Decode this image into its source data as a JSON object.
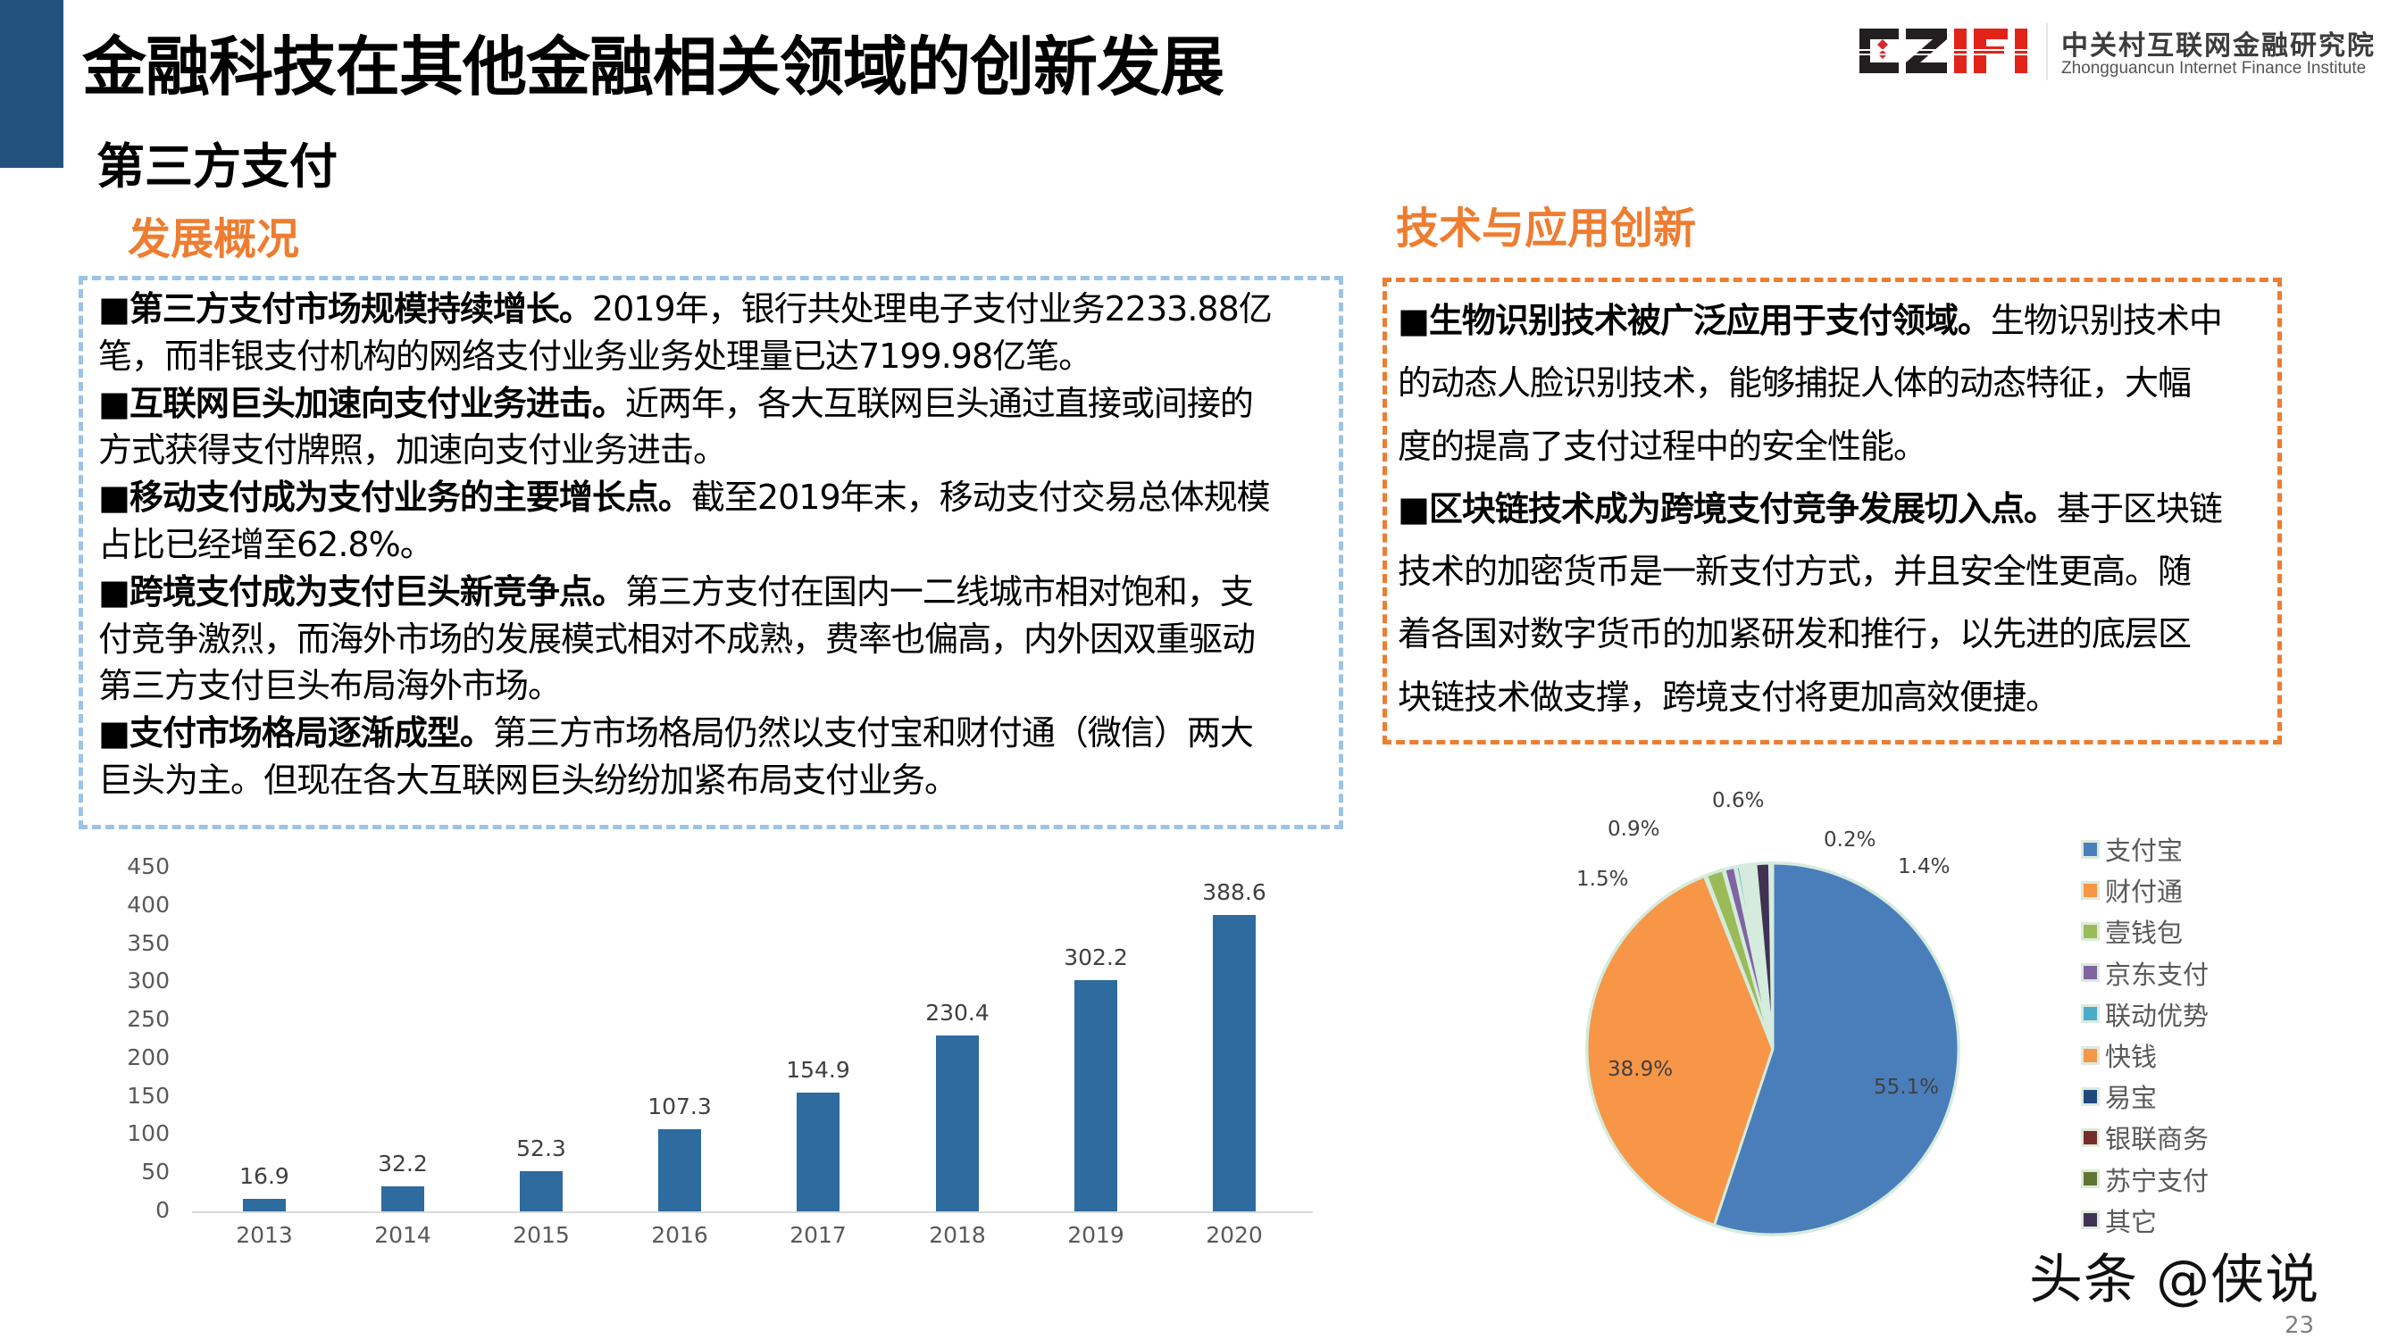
{
  "header": {
    "title": "金融科技在其他金融相关领域的创新发展",
    "section": "第三方支付",
    "accent_color": "#24527f"
  },
  "logo": {
    "mark": "CZIFI",
    "name_cn": "中关村互联网金融研究院",
    "name_en": "Zhongguancun Internet Finance Institute"
  },
  "overview": {
    "heading": "发展概况",
    "border_color": "#9dc3e6",
    "lines": [
      {
        "bullet": "■",
        "lead": "第三方支付市场规模持续增长。",
        "text": "2019年，银行共处理电子支付业务2233.88亿"
      },
      {
        "bullet": "",
        "lead": "",
        "text": "笔，而非银支付机构的网络支付业务业务处理量已达7199.98亿笔。"
      },
      {
        "bullet": "■",
        "lead": "互联网巨头加速向支付业务进击。",
        "text": "近两年，各大互联网巨头通过直接或间接的"
      },
      {
        "bullet": "",
        "lead": "",
        "text": "方式获得支付牌照，加速向支付业务进击。"
      },
      {
        "bullet": "■",
        "lead": "移动支付成为支付业务的主要增长点。",
        "text": "截至2019年末，移动支付交易总体规模"
      },
      {
        "bullet": "",
        "lead": "",
        "text": "占比已经增至62.8%。"
      },
      {
        "bullet": "■",
        "lead": "跨境支付成为支付巨头新竞争点。",
        "text": "第三方支付在国内一二线城市相对饱和，支"
      },
      {
        "bullet": "",
        "lead": "",
        "text": "付竞争激烈，而海外市场的发展模式相对不成熟，费率也偏高，内外因双重驱动"
      },
      {
        "bullet": "",
        "lead": "",
        "text": "第三方支付巨头布局海外市场。"
      },
      {
        "bullet": "■",
        "lead": "支付市场格局逐渐成型。",
        "text": "第三方市场格局仍然以支付宝和财付通（微信）两大"
      },
      {
        "bullet": "",
        "lead": "",
        "text": "巨头为主。但现在各大互联网巨头纷纷加紧布局支付业务。"
      }
    ]
  },
  "tech": {
    "heading": "技术与应用创新",
    "border_color": "#ed7d31",
    "lines": [
      {
        "bullet": "■",
        "lead": "生物识别技术被广泛应用于支付领域。",
        "text": "生物识别技术中"
      },
      {
        "bullet": "",
        "lead": "",
        "text": "的动态人脸识别技术，能够捕捉人体的动态特征，大幅"
      },
      {
        "bullet": "",
        "lead": "",
        "text": "度的提高了支付过程中的安全性能。"
      },
      {
        "bullet": "■",
        "lead": "区块链技术成为跨境支付竞争发展切入点。",
        "text": "基于区块链"
      },
      {
        "bullet": "",
        "lead": "",
        "text": "技术的加密货币是一新支付方式，并且安全性更高。随"
      },
      {
        "bullet": "",
        "lead": "",
        "text": "着各国对数字货币的加紧研发和推行，以先进的底层区"
      },
      {
        "bullet": "",
        "lead": "",
        "text": "块链技术做支撑，跨境支付将更加高效便捷。"
      }
    ]
  },
  "chart_data": [
    {
      "type": "bar",
      "title": "",
      "xlabel": "",
      "ylabel": "",
      "categories": [
        "2013",
        "2014",
        "2015",
        "2016",
        "2017",
        "2018",
        "2019",
        "2020"
      ],
      "values": [
        16.9,
        32.2,
        52.3,
        107.3,
        154.9,
        230.4,
        302.2,
        388.6
      ],
      "value_labels": [
        "16.9",
        "32.2",
        "52.3",
        "107.3",
        "154.9",
        "230.4",
        "302.2",
        "388.6"
      ],
      "ylim": [
        0,
        450
      ],
      "yticks": [
        "0",
        "50",
        "100",
        "150",
        "200",
        "250",
        "300",
        "350",
        "400",
        "450"
      ],
      "grid": false,
      "legend": null,
      "color": "#2e6b9e"
    },
    {
      "type": "pie",
      "title": "",
      "legend_position": "right",
      "slices": [
        {
          "label": "支付宝",
          "value": 55.1,
          "display": "55.1%",
          "color": "#4a7ebb"
        },
        {
          "label": "财付通",
          "value": 38.9,
          "display": "38.9%",
          "color": "#f79646"
        },
        {
          "label": "壹钱包",
          "value": 1.5,
          "display": "1.5%",
          "color": "#9bbb59"
        },
        {
          "label": "京东支付",
          "value": 0.9,
          "display": "0.9%",
          "color": "#8064a2"
        },
        {
          "label": "联动优势",
          "value": 0.6,
          "display": "0.6%",
          "color": "#4bacc6"
        },
        {
          "label": "快钱",
          "value": 0.2,
          "display": "0.2%",
          "color": "#f79646"
        },
        {
          "label": "易宝",
          "value": null,
          "display": "",
          "color": "#1f497d"
        },
        {
          "label": "银联商务",
          "value": null,
          "display": "",
          "color": "#772c2a"
        },
        {
          "label": "苏宁支付",
          "value": null,
          "display": "",
          "color": "#5f7530"
        },
        {
          "label": "其它",
          "value": 1.4,
          "display": "1.4%",
          "color": "#403152"
        }
      ],
      "labels_shown": [
        "55.1%",
        "38.9%",
        "1.5%",
        "0.9%",
        "0.6%",
        "0.2%",
        "1.4%"
      ]
    }
  ],
  "footer": {
    "watermark": "头条 @侠说",
    "page_number": "23"
  }
}
